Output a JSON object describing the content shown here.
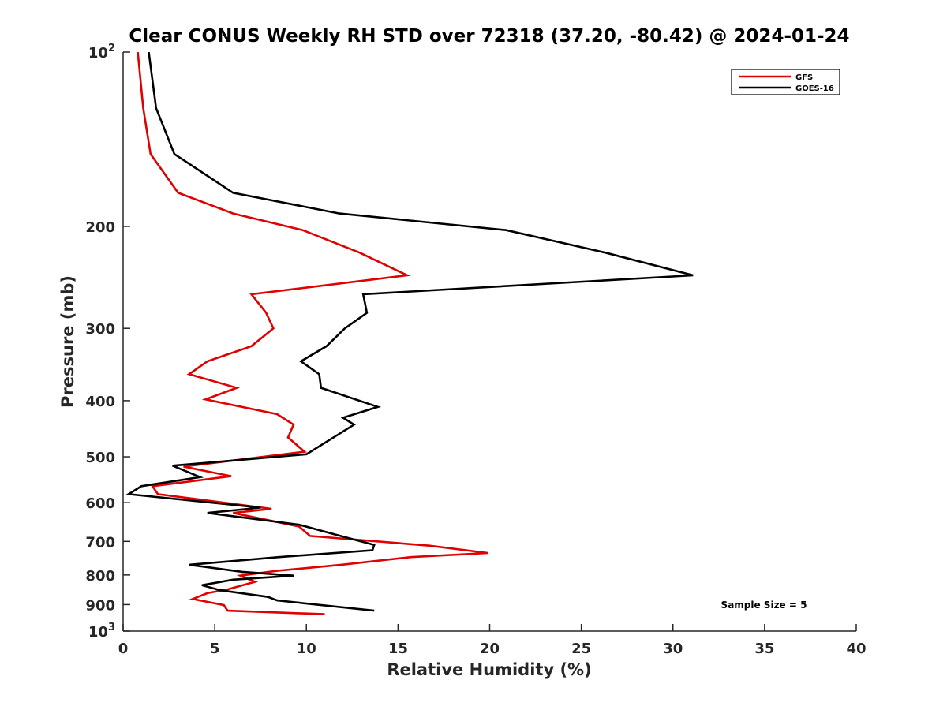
{
  "chart_data": {
    "type": "line",
    "title": "Clear CONUS Weekly RH STD over 72318 (37.20, -80.42) @ 2024-01-24",
    "xlabel": "Relative Humidity (%)",
    "ylabel": "Pressure (mb)",
    "xlim": [
      0,
      40
    ],
    "ylim": [
      100,
      1000
    ],
    "y_scale": "log",
    "y_reversed": true,
    "grid": false,
    "legend_position": "top-right",
    "x_ticks": [
      "0",
      "5",
      "10",
      "15",
      "20",
      "25",
      "30",
      "35",
      "40"
    ],
    "y_ticks": [
      {
        "value": 100,
        "base": "10",
        "exp": "2"
      },
      {
        "value": 200,
        "label": "200"
      },
      {
        "value": 300,
        "label": "300"
      },
      {
        "value": 400,
        "label": "400"
      },
      {
        "value": 500,
        "label": "500"
      },
      {
        "value": 600,
        "label": "600"
      },
      {
        "value": 700,
        "label": "700"
      },
      {
        "value": 800,
        "label": "800"
      },
      {
        "value": 900,
        "label": "900"
      },
      {
        "value": 1000,
        "base": "10",
        "exp": "3"
      }
    ],
    "annotation": "Sample Size = 5",
    "series": [
      {
        "name": "GFS",
        "color": "#e00000",
        "points": [
          [
            0.8,
            100
          ],
          [
            1.1,
            125
          ],
          [
            1.5,
            150
          ],
          [
            3.0,
            175
          ],
          [
            6.0,
            190
          ],
          [
            9.8,
            203
          ],
          [
            12.9,
            222
          ],
          [
            15.5,
            243
          ],
          [
            7.0,
            262
          ],
          [
            7.8,
            282
          ],
          [
            8.2,
            300
          ],
          [
            7.0,
            322
          ],
          [
            4.6,
            342
          ],
          [
            3.6,
            360
          ],
          [
            6.2,
            380
          ],
          [
            4.5,
            398
          ],
          [
            8.4,
            422
          ],
          [
            9.3,
            440
          ],
          [
            9.0,
            463
          ],
          [
            9.9,
            490
          ],
          [
            3.3,
            520
          ],
          [
            5.9,
            540
          ],
          [
            1.6,
            562
          ],
          [
            1.9,
            580
          ],
          [
            8.1,
            615
          ],
          [
            6.0,
            625
          ],
          [
            9.6,
            660
          ],
          [
            10.2,
            685
          ],
          [
            16.7,
            712
          ],
          [
            19.9,
            733
          ],
          [
            15.7,
            745
          ],
          [
            11.9,
            768
          ],
          [
            8.4,
            787
          ],
          [
            6.4,
            802
          ],
          [
            7.2,
            822
          ],
          [
            5.7,
            847
          ],
          [
            4.6,
            860
          ],
          [
            3.8,
            880
          ],
          [
            5.5,
            902
          ],
          [
            5.7,
            922
          ],
          [
            11.0,
            935
          ]
        ]
      },
      {
        "name": "GOES-16",
        "color": "#000000",
        "points": [
          [
            1.4,
            100
          ],
          [
            1.8,
            125
          ],
          [
            2.8,
            150
          ],
          [
            6.0,
            175
          ],
          [
            11.8,
            190
          ],
          [
            20.9,
            203
          ],
          [
            26.3,
            222
          ],
          [
            31.1,
            243
          ],
          [
            13.1,
            262
          ],
          [
            13.3,
            282
          ],
          [
            12.1,
            300
          ],
          [
            11.1,
            322
          ],
          [
            9.7,
            342
          ],
          [
            10.7,
            360
          ],
          [
            10.8,
            380
          ],
          [
            13.9,
            410
          ],
          [
            12.0,
            428
          ],
          [
            12.6,
            440
          ],
          [
            10.0,
            495
          ],
          [
            2.7,
            518
          ],
          [
            4.2,
            542
          ],
          [
            1.0,
            562
          ],
          [
            0.3,
            580
          ],
          [
            7.5,
            612
          ],
          [
            4.6,
            625
          ],
          [
            9.6,
            655
          ],
          [
            11.5,
            680
          ],
          [
            13.7,
            710
          ],
          [
            13.6,
            725
          ],
          [
            8.5,
            745
          ],
          [
            3.6,
            768
          ],
          [
            6.5,
            790
          ],
          [
            9.3,
            802
          ],
          [
            6.0,
            815
          ],
          [
            4.3,
            833
          ],
          [
            5.3,
            850
          ],
          [
            7.9,
            873
          ],
          [
            8.4,
            885
          ],
          [
            13.7,
            922
          ]
        ]
      }
    ]
  }
}
